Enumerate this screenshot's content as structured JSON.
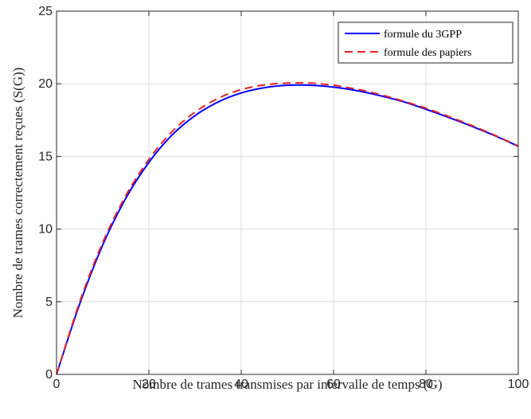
{
  "chart_data": {
    "type": "line",
    "xlabel": "Nombre de trames transmises par intervalle de temps (G)",
    "ylabel": "Nombre de trames correctement reçues (S(G))",
    "xlim": [
      0,
      100
    ],
    "ylim": [
      0,
      25
    ],
    "xticks": [
      "0",
      "20",
      "40",
      "60",
      "80",
      "100"
    ],
    "yticks": [
      "0",
      "5",
      "10",
      "15",
      "20",
      "25"
    ],
    "grid": true,
    "legend_position": "top-right",
    "x": [
      0,
      5,
      10,
      15,
      20,
      25,
      30,
      35,
      40,
      45,
      50,
      55,
      60,
      65,
      70,
      75,
      80,
      85,
      90,
      95,
      100
    ],
    "series": [
      {
        "name": "formule du 3GPP",
        "color": "#0000ff",
        "dash": "solid",
        "values": [
          0,
          4.83,
          8.9,
          12.12,
          14.59,
          16.47,
          17.81,
          18.75,
          19.37,
          19.73,
          19.9,
          19.9,
          19.77,
          19.53,
          19.19,
          18.78,
          18.25,
          17.68,
          17.07,
          16.42,
          15.7
        ]
      },
      {
        "name": "formule des papiers",
        "color": "#e8222a",
        "dash": "dashed",
        "values": [
          0,
          4.97,
          9.08,
          12.3,
          14.8,
          16.7,
          18.05,
          19.0,
          19.6,
          19.92,
          20.05,
          20.05,
          19.9,
          19.63,
          19.27,
          18.82,
          18.32,
          17.74,
          17.12,
          16.45,
          15.72
        ]
      }
    ]
  }
}
